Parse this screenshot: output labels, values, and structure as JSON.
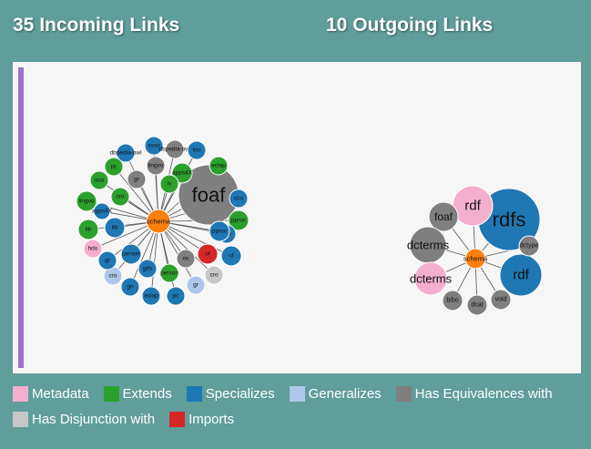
{
  "headings": {
    "incoming": "35 Incoming Links",
    "outgoing": "10 Outgoing Links"
  },
  "colors": {
    "Metadata": "#f4afcf",
    "Extends": "#2ca02c",
    "Specializes": "#1f77b4",
    "Generalizes": "#aec7e8",
    "Has Equivalences with": "#7f7f7f",
    "Has Disjunction with": "#c7c7c7",
    "Imports": "#d62728",
    "Center": "#ff7f0e",
    "panel_accent": "#9b72c8"
  },
  "legend": [
    {
      "label": "Metadata",
      "color": "#f4afcf"
    },
    {
      "label": "Extends",
      "color": "#2ca02c"
    },
    {
      "label": "Specializes",
      "color": "#1f77b4"
    },
    {
      "label": "Generalizes",
      "color": "#aec7e8"
    },
    {
      "label": "Has Equivalences with",
      "color": "#7f7f7f"
    },
    {
      "label": "Has Disjunction with",
      "color": "#c7c7c7"
    },
    {
      "label": "Imports",
      "color": "#d62728"
    }
  ],
  "graphs": {
    "incoming": {
      "center": "schema",
      "nodes": [
        {
          "label": "foaf",
          "type": "Has Equivalences with"
        },
        {
          "label": "cco",
          "type": "Specializes"
        },
        {
          "label": "pproc",
          "type": "Extends"
        },
        {
          "label": "cro",
          "type": "Specializes"
        },
        {
          "label": "of",
          "type": "Specializes"
        },
        {
          "label": "cro",
          "type": "Has Disjunction with"
        },
        {
          "label": "gr",
          "type": "Generalizes"
        },
        {
          "label": "pc",
          "type": "Specializes"
        },
        {
          "label": "eclap",
          "type": "Specializes"
        },
        {
          "label": "gn",
          "type": "Specializes"
        },
        {
          "label": "cro",
          "type": "Generalizes"
        },
        {
          "label": "gr",
          "type": "Specializes"
        },
        {
          "label": "hdo",
          "type": "Metadata"
        },
        {
          "label": "lib",
          "type": "Extends"
        },
        {
          "label": "lingvo",
          "type": "Extends"
        },
        {
          "label": "uco",
          "type": "Extends"
        },
        {
          "label": "pc",
          "type": "Extends"
        },
        {
          "label": "dbpedia-owl",
          "type": "Specializes"
        },
        {
          "label": "ssso",
          "type": "Specializes"
        },
        {
          "label": "dbpedia-owl",
          "type": "Has Equivalences with"
        },
        {
          "label": "foo",
          "type": "Specializes"
        },
        {
          "label": "eclap",
          "type": "Extends"
        },
        {
          "label": "apps4X",
          "type": "Extends"
        },
        {
          "label": "lingvo",
          "type": "Has Equivalences with"
        },
        {
          "label": "gr",
          "type": "Has Equivalences with"
        },
        {
          "label": "cro",
          "type": "Extends"
        },
        {
          "label": "apps4X",
          "type": "Specializes"
        },
        {
          "label": "lib",
          "type": "Specializes"
        },
        {
          "label": "lv",
          "type": "Extends"
        },
        {
          "label": "person",
          "type": "Specializes"
        },
        {
          "label": "gtfs",
          "type": "Specializes"
        },
        {
          "label": "person",
          "type": "Extends"
        },
        {
          "label": "ov",
          "type": "Has Equivalences with"
        },
        {
          "label": "of",
          "type": "Imports"
        },
        {
          "label": "pproc",
          "type": "Specializes"
        }
      ]
    },
    "outgoing": {
      "center": "schema",
      "nodes": [
        {
          "label": "rdfs",
          "type": "Specializes"
        },
        {
          "label": "rdf",
          "type": "Metadata"
        },
        {
          "label": "foaf",
          "type": "Has Equivalences with"
        },
        {
          "label": "dcterms",
          "type": "Has Equivalences with"
        },
        {
          "label": "dcterms",
          "type": "Metadata"
        },
        {
          "label": "bibo",
          "type": "Has Equivalences with"
        },
        {
          "label": "dcat",
          "type": "Has Equivalences with"
        },
        {
          "label": "void",
          "type": "Has Equivalences with"
        },
        {
          "label": "rdf",
          "type": "Specializes"
        },
        {
          "label": "dctype",
          "type": "Has Equivalences with"
        }
      ]
    }
  }
}
